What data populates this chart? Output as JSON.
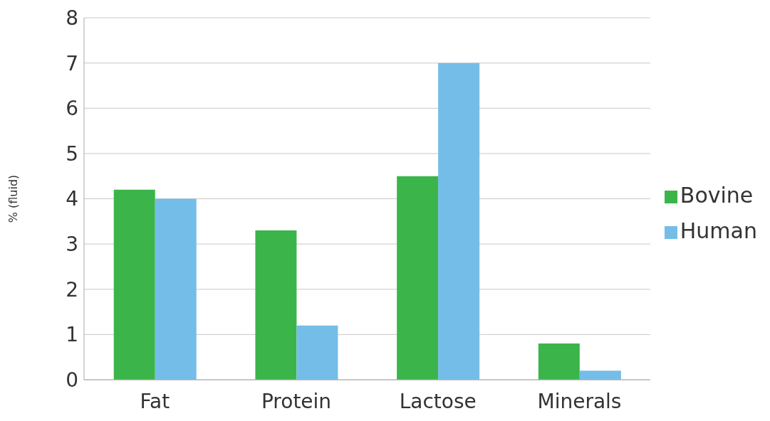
{
  "chart_data": {
    "type": "bar",
    "ylabel": "% (fluid)",
    "categories": [
      "Fat",
      "Protein",
      "Lactose",
      "Minerals"
    ],
    "series": [
      {
        "name": "Bovine",
        "color": "#3bb54a",
        "values": [
          4.2,
          3.3,
          4.5,
          0.8
        ]
      },
      {
        "name": "Human",
        "color": "#74bde8",
        "values": [
          4.0,
          1.2,
          7.0,
          0.2
        ]
      }
    ],
    "ylim": [
      0,
      8
    ],
    "yticks": [
      0,
      1,
      2,
      3,
      4,
      5,
      6,
      7,
      8
    ],
    "grid": "y",
    "legend": "right"
  }
}
